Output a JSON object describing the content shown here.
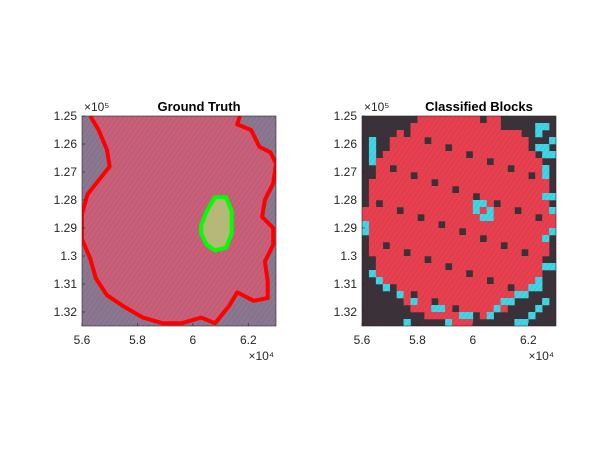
{
  "chart_data": [
    {
      "type": "image",
      "title": "Ground Truth",
      "xlim": [
        56000,
        63000
      ],
      "ylim": [
        125000,
        132500
      ],
      "y_reversed": true,
      "xticks": [
        56000,
        58000,
        60000,
        62000
      ],
      "xtick_labels": [
        "5.6",
        "5.8",
        "6",
        "6.2"
      ],
      "yticks": [
        125000,
        126000,
        127000,
        128000,
        129000,
        130000,
        131000,
        132000
      ],
      "ytick_labels": [
        "1.25",
        "1.26",
        "1.27",
        "1.28",
        "1.29",
        "1.3",
        "1.31",
        "1.32"
      ],
      "x_exponent": "×10⁴",
      "y_exponent": "×10⁵",
      "colors": {
        "tumor": "#c9607a",
        "background": "#8b7890",
        "tumor_outline": "#ff0000",
        "normal_outline": "#00ff00",
        "normal_fill": "#b6b87a"
      },
      "tumor_boundary": [
        [
          56300,
          125000
        ],
        [
          56600,
          125500
        ],
        [
          56900,
          126200
        ],
        [
          57000,
          126800
        ],
        [
          56600,
          127300
        ],
        [
          56200,
          127800
        ],
        [
          56000,
          128500
        ],
        [
          56000,
          129400
        ],
        [
          56300,
          130100
        ],
        [
          56500,
          130800
        ],
        [
          56900,
          131400
        ],
        [
          57500,
          131800
        ],
        [
          58200,
          132200
        ],
        [
          58900,
          132400
        ],
        [
          59600,
          132400
        ],
        [
          60300,
          132200
        ],
        [
          60800,
          132400
        ],
        [
          61300,
          131800
        ],
        [
          61600,
          131300
        ],
        [
          62200,
          131600
        ],
        [
          62700,
          131500
        ],
        [
          62700,
          130900
        ],
        [
          62600,
          130200
        ],
        [
          62900,
          129600
        ],
        [
          62900,
          129000
        ],
        [
          62500,
          128600
        ],
        [
          62600,
          128000
        ],
        [
          62900,
          127400
        ],
        [
          63000,
          126700
        ],
        [
          62800,
          126300
        ],
        [
          62400,
          126100
        ],
        [
          62100,
          125500
        ],
        [
          61600,
          125300
        ],
        [
          61700,
          125000
        ]
      ],
      "normal_region": [
        [
          60500,
          128400
        ],
        [
          60800,
          127900
        ],
        [
          61200,
          127900
        ],
        [
          61400,
          128400
        ],
        [
          61400,
          129200
        ],
        [
          61200,
          129700
        ],
        [
          60800,
          129800
        ],
        [
          60500,
          129600
        ],
        [
          60300,
          129200
        ],
        [
          60300,
          128900
        ]
      ]
    },
    {
      "type": "heatmap",
      "title": "Classified Blocks",
      "xlim": [
        56000,
        63000
      ],
      "ylim": [
        125000,
        132500
      ],
      "y_reversed": true,
      "xticks": [
        56000,
        58000,
        60000,
        62000
      ],
      "xtick_labels": [
        "5.6",
        "5.8",
        "6",
        "6.2"
      ],
      "yticks": [
        125000,
        126000,
        127000,
        128000,
        129000,
        130000,
        131000,
        132000
      ],
      "ytick_labels": [
        "1.25",
        "1.26",
        "1.27",
        "1.28",
        "1.29",
        "1.3",
        "1.31",
        "1.32"
      ],
      "x_exponent": "×10⁴",
      "y_exponent": "×10⁵",
      "grid_cols": 28,
      "grid_rows": 30,
      "class_colors": {
        "tumor": "#e8404e",
        "normal": "#41d6e6",
        "background": "#3a3238"
      },
      "normal_cells": [
        [
          25,
          1
        ],
        [
          26,
          1
        ],
        [
          25,
          2
        ],
        [
          1,
          3
        ],
        [
          27,
          3
        ],
        [
          1,
          4
        ],
        [
          25,
          4
        ],
        [
          26,
          4
        ],
        [
          1,
          5
        ],
        [
          26,
          5
        ],
        [
          27,
          5
        ],
        [
          1,
          6
        ],
        [
          26,
          7
        ],
        [
          26,
          8
        ],
        [
          26,
          11
        ],
        [
          27,
          11
        ],
        [
          16,
          12
        ],
        [
          17,
          12
        ],
        [
          16,
          13
        ],
        [
          18,
          13
        ],
        [
          17,
          14
        ],
        [
          18,
          14
        ],
        [
          0,
          15
        ],
        [
          27,
          13
        ],
        [
          0,
          16
        ],
        [
          27,
          16
        ],
        [
          26,
          17
        ],
        [
          26,
          21
        ],
        [
          27,
          21
        ],
        [
          1,
          22
        ],
        [
          2,
          23
        ],
        [
          25,
          23
        ],
        [
          3,
          24
        ],
        [
          24,
          24
        ],
        [
          25,
          24
        ],
        [
          5,
          25
        ],
        [
          22,
          25
        ],
        [
          23,
          25
        ],
        [
          7,
          26
        ],
        [
          20,
          26
        ],
        [
          21,
          26
        ],
        [
          26,
          26
        ],
        [
          10,
          27
        ],
        [
          11,
          27
        ],
        [
          19,
          27
        ],
        [
          25,
          27
        ],
        [
          14,
          28
        ],
        [
          15,
          28
        ],
        [
          18,
          28
        ],
        [
          24,
          28
        ],
        [
          6,
          29
        ],
        [
          12,
          29
        ],
        [
          22,
          29
        ],
        [
          23,
          29
        ]
      ]
    }
  ]
}
